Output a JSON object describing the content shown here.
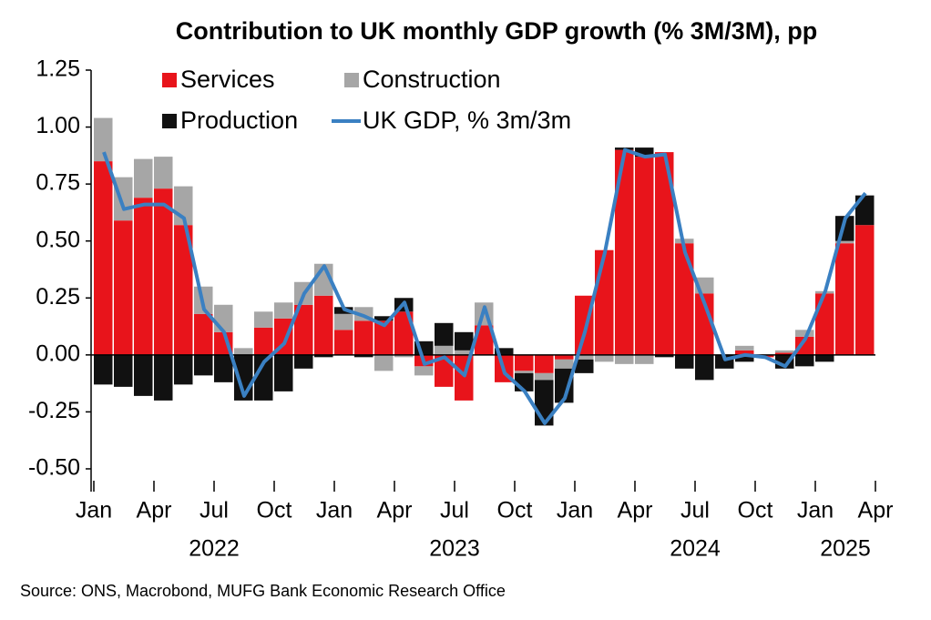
{
  "chart_data": {
    "type": "bar",
    "title": "Contribution to UK monthly GDP growth (% 3M/3M), pp",
    "source": "Source: ONS, Macrobond, MUFG Bank Economic Research Office",
    "categories": [
      "Jan",
      null,
      null,
      "Apr",
      null,
      null,
      "Jul",
      null,
      null,
      "Oct",
      null,
      null,
      "Jan",
      null,
      null,
      "Apr",
      null,
      null,
      "Jul",
      null,
      null,
      "Oct",
      null,
      null,
      "Jan",
      null,
      null,
      "Apr",
      null,
      null,
      "Jul",
      null,
      null,
      "Oct",
      null,
      null,
      "Jan",
      null,
      null,
      "Apr"
    ],
    "years": [
      "2022",
      "2023",
      "2024",
      "2025"
    ],
    "legend": "upper left",
    "ylim": [
      -0.6,
      1.25
    ],
    "yticks": [
      {
        "value": -0.5,
        "label": "-0.50"
      },
      -0.25,
      {
        "value": 0,
        "label": "0.00"
      },
      0.25,
      {
        "value": 0.5,
        "label": "0.50"
      },
      0.75,
      {
        "value": 1,
        "label": "1.00"
      },
      1.25
    ],
    "series": [
      {
        "name": "Services",
        "type": "bar",
        "color": "#e8141b",
        "values": [
          0.85,
          0.59,
          0.69,
          0.73,
          0.57,
          0.18,
          0.1,
          0.0,
          0.12,
          0.16,
          0.22,
          0.26,
          0.11,
          0.15,
          0.15,
          0.19,
          -0.05,
          -0.14,
          -0.2,
          0.13,
          -0.12,
          -0.07,
          -0.08,
          -0.02,
          0.26,
          0.46,
          0.9,
          0.87,
          0.89,
          0.49,
          0.27,
          0.0,
          0.02,
          -0.01,
          0.01,
          0.08,
          0.27,
          0.49,
          0.57,
          null
        ]
      },
      {
        "name": "Construction",
        "type": "bar",
        "color": "#a6a6a6",
        "values": [
          0.19,
          0.19,
          0.17,
          0.14,
          0.17,
          0.12,
          0.12,
          0.03,
          0.07,
          0.07,
          0.1,
          0.14,
          0.07,
          0.06,
          -0.07,
          -0.01,
          -0.04,
          0.04,
          0.02,
          0.1,
          0.0,
          -0.01,
          -0.03,
          -0.04,
          -0.02,
          -0.03,
          -0.04,
          -0.04,
          0.0,
          0.02,
          0.07,
          0.0,
          0.02,
          0.0,
          0.01,
          0.03,
          0.01,
          0.01,
          0.0,
          null
        ]
      },
      {
        "name": "Production",
        "type": "bar",
        "color": "#111111",
        "values": [
          -0.13,
          -0.14,
          -0.18,
          -0.2,
          -0.13,
          -0.09,
          -0.12,
          -0.2,
          -0.2,
          -0.16,
          -0.06,
          -0.01,
          0.03,
          -0.01,
          0.02,
          0.06,
          0.06,
          0.1,
          0.08,
          0.0,
          0.03,
          -0.08,
          -0.2,
          -0.15,
          -0.06,
          0.0,
          0.01,
          0.04,
          -0.01,
          -0.06,
          -0.11,
          -0.06,
          -0.03,
          0.0,
          -0.06,
          -0.05,
          -0.03,
          0.11,
          0.13,
          null
        ]
      },
      {
        "name": "UK GDP, % 3m/3m",
        "type": "line",
        "color": "#3a80c2",
        "values": [
          0.89,
          0.64,
          0.66,
          0.66,
          0.6,
          0.2,
          0.1,
          -0.18,
          -0.03,
          0.05,
          0.27,
          0.39,
          0.2,
          0.17,
          0.13,
          0.23,
          -0.04,
          -0.01,
          -0.09,
          0.21,
          -0.08,
          -0.16,
          -0.3,
          -0.19,
          0.1,
          0.45,
          0.9,
          0.87,
          0.88,
          0.45,
          0.22,
          -0.02,
          0.0,
          -0.01,
          -0.05,
          0.07,
          0.28,
          0.6,
          0.71,
          null
        ]
      }
    ]
  }
}
